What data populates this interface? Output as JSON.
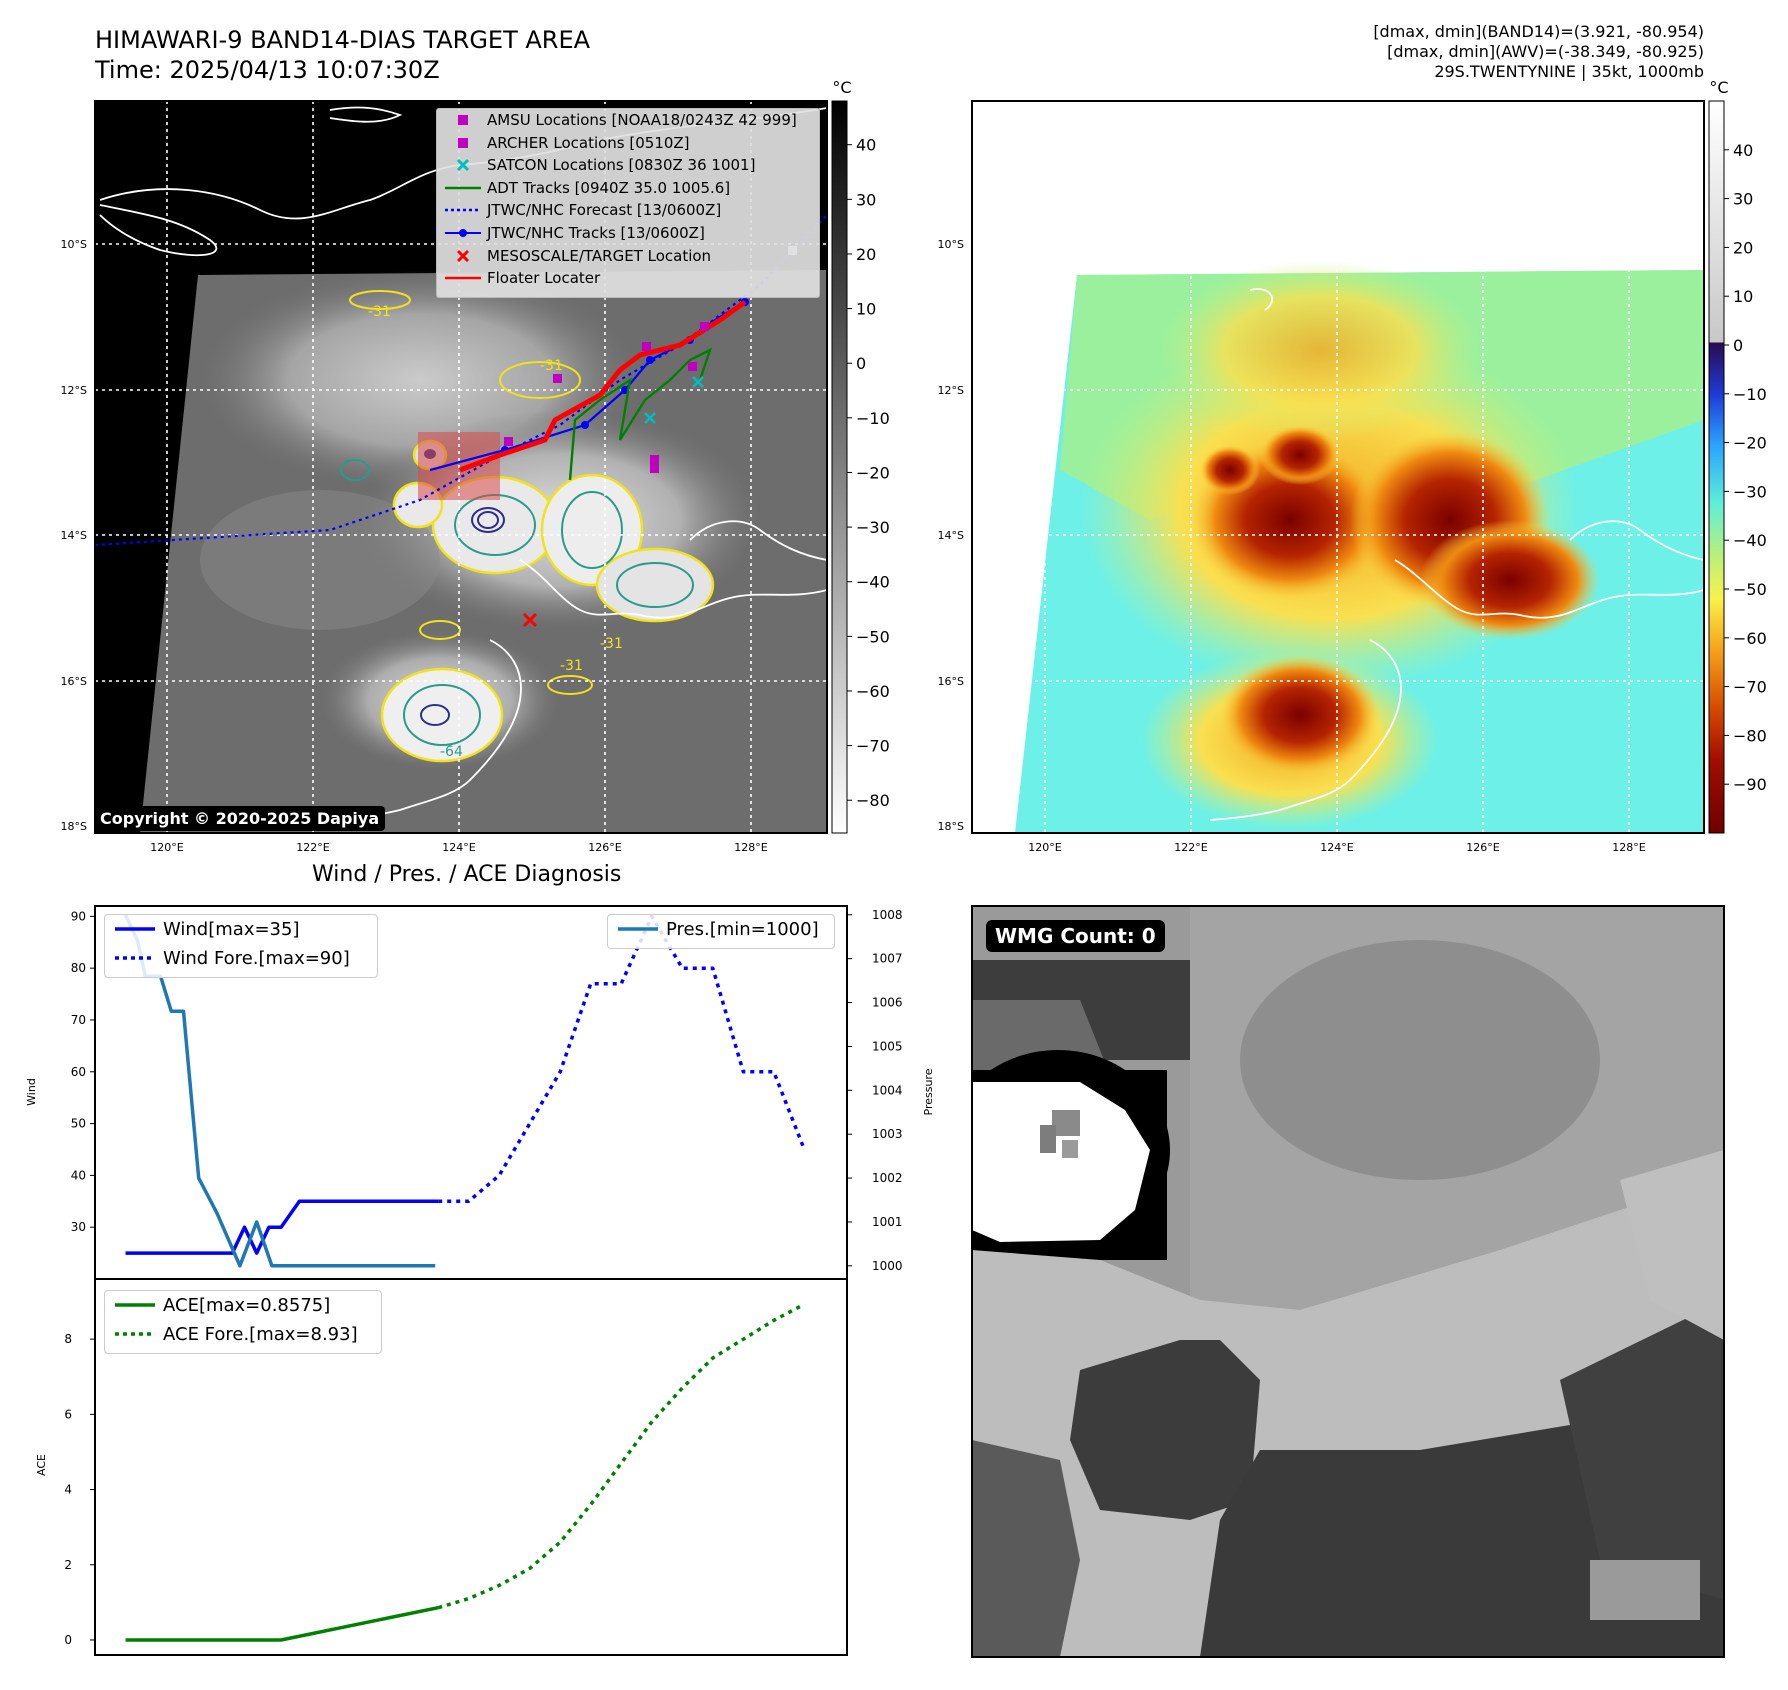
{
  "header": {
    "title_line1": "HIMAWARI-9 BAND14-DIAS TARGET AREA",
    "title_line2": "Time: 2025/04/13 10:07:30Z",
    "stats_line1": "[dmax, dmin](BAND14)=(3.921, -80.954)",
    "stats_line2": "[dmax, dmin](AWV)=(-38.349, -80.925)",
    "stats_line3": "29S.TWENTYNINE | 35kt, 1000mb"
  },
  "map_panel": {
    "lon_ticks": [
      "120°E",
      "122°E",
      "124°E",
      "126°E",
      "128°E"
    ],
    "lat_ticks": [
      "10°S",
      "12°S",
      "14°S",
      "16°S",
      "18°S"
    ],
    "copyright": "Copyright © 2020-2025 Dapiya",
    "colorbar_unit": "°C",
    "colorbar_ticks": [
      "40",
      "30",
      "20",
      "10",
      "0",
      "−10",
      "−20",
      "−30",
      "−40",
      "−50",
      "−60",
      "−70",
      "−80"
    ],
    "contour_labels": [
      "-31",
      "-31",
      "-31",
      "-31",
      "-64"
    ],
    "legend": [
      {
        "label": "AMSU Locations [NOAA18/0243Z 42 999]",
        "marker": "square",
        "color": "#bf00bf"
      },
      {
        "label": "ARCHER Locations [0510Z]",
        "marker": "square",
        "color": "#bf00bf"
      },
      {
        "label": "SATCON Locations [0830Z 36 1001]",
        "marker": "x",
        "color": "#00bfbf"
      },
      {
        "label": "ADT Tracks [0940Z 35.0 1005.6]",
        "marker": "line",
        "color": "#008000"
      },
      {
        "label": "JTWC/NHC Forecast [13/0600Z]",
        "marker": "dotted",
        "color": "#0000ff"
      },
      {
        "label": "JTWC/NHC Tracks [13/0600Z]",
        "marker": "line-dot",
        "color": "#0000ff"
      },
      {
        "label": "MESOSCALE/TARGET Location",
        "marker": "x",
        "color": "#ff0000"
      },
      {
        "label": "Floater Locater",
        "marker": "line",
        "color": "#ff0000"
      }
    ]
  },
  "awv_panel": {
    "lon_ticks": [
      "120°E",
      "122°E",
      "124°E",
      "126°E",
      "128°E"
    ],
    "lat_ticks": [
      "10°S",
      "12°S",
      "14°S",
      "16°S",
      "18°S"
    ],
    "colorbar_unit": "°C",
    "colorbar_ticks": [
      "40",
      "30",
      "20",
      "10",
      "0",
      "−10",
      "−20",
      "−30",
      "−40",
      "−50",
      "−60",
      "−70",
      "−80",
      "−90"
    ]
  },
  "diag_title": "Wind / Pres. / ACE Diagnosis",
  "wmg_label": "WMG Count: 0",
  "chart_data": [
    {
      "type": "line",
      "title": "Wind / Pres. / ACE Diagnosis",
      "ylabel": "Wind",
      "ylabel_right": "Pressure",
      "ylim": [
        20,
        92
      ],
      "ylim_right": [
        999.7,
        1008.2
      ],
      "yticks": [
        30,
        40,
        50,
        60,
        70,
        80,
        90
      ],
      "yticks_right": [
        1000,
        1001,
        1002,
        1003,
        1004,
        1005,
        1006,
        1007,
        1008
      ],
      "legend_left": [
        "Wind[max=35]",
        "Wind Fore.[max=90]"
      ],
      "legend_right": [
        "Pres.[min=1000]"
      ],
      "series": [
        {
          "name": "Wind[max=35]",
          "axis": "left",
          "style": "solid",
          "color": "#0000ff",
          "x": [
            0,
            7,
            7.8,
            8.6,
            9.4,
            10.2,
            11.4,
            13.8,
            20.5
          ],
          "y": [
            25,
            25,
            30,
            25,
            30,
            30,
            35,
            35,
            35
          ]
        },
        {
          "name": "Wind Fore.[max=90]",
          "axis": "left",
          "style": "dotted",
          "color": "#0000ff",
          "x": [
            20.5,
            22.5,
            24.5,
            26.5,
            28.5,
            30.5,
            32.5,
            34.5,
            36.5,
            38.5,
            40.5,
            42.5,
            44.5
          ],
          "y": [
            35,
            35,
            40,
            50,
            60,
            77,
            77,
            90,
            80,
            80,
            60,
            60,
            45
          ]
        },
        {
          "name": "Pres.[min=1000]",
          "axis": "right",
          "style": "solid",
          "color": "#1f77b4",
          "x": [
            0,
            0.8,
            1.3,
            2.3,
            3.0,
            3.8,
            4.8,
            6.0,
            7.5,
            8.6,
            9.6,
            10.3,
            11.5,
            13.5,
            20.3
          ],
          "y": [
            1008,
            1007.4,
            1006.6,
            1006.6,
            1005.8,
            1005.8,
            1002.0,
            1001.2,
            1000.0,
            1001.0,
            1000.0,
            1000.0,
            1000.0,
            1000.0,
            1000.0
          ]
        }
      ]
    },
    {
      "type": "line",
      "ylabel": "ACE",
      "ylim": [
        -0.4,
        9.6
      ],
      "yticks": [
        0,
        2,
        4,
        6,
        8
      ],
      "legend": [
        "ACE[max=0.8575]",
        "ACE Fore.[max=8.93]"
      ],
      "series": [
        {
          "name": "ACE[max=0.8575]",
          "style": "solid",
          "color": "#008000",
          "x": [
            0,
            10.2,
            20.5
          ],
          "y": [
            0,
            0,
            0.8575
          ]
        },
        {
          "name": "ACE Fore.[max=8.93]",
          "style": "dotted",
          "color": "#008000",
          "x": [
            20.5,
            22.5,
            24.5,
            26.5,
            28.5,
            30.5,
            32.5,
            34.5,
            36.5,
            38.5,
            40.5,
            42.5,
            44.5
          ],
          "y": [
            0.8575,
            1.1,
            1.45,
            1.9,
            2.6,
            3.6,
            4.7,
            5.8,
            6.7,
            7.5,
            8.0,
            8.5,
            8.93
          ]
        }
      ]
    }
  ],
  "colors": {
    "wind": "#0000ff",
    "pressure": "#1f77b4",
    "ace": "#008000",
    "floater": "#ff0000",
    "archer": "#bf00bf",
    "satcon": "#00bfbf"
  }
}
